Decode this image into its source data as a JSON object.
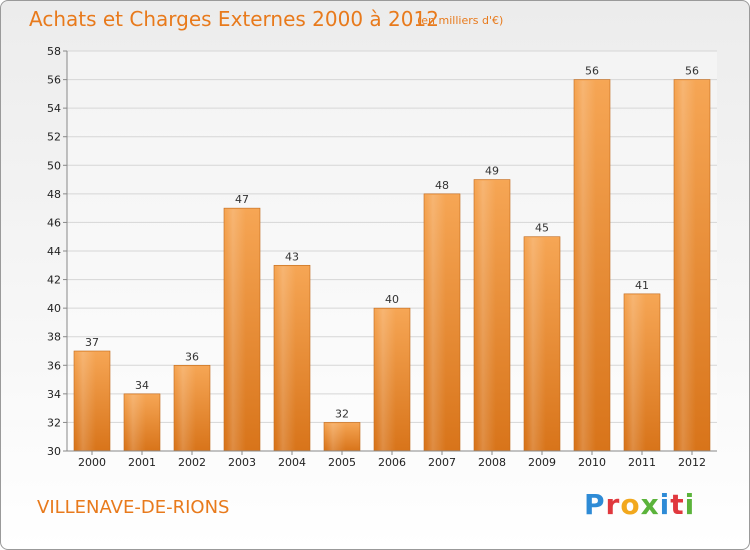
{
  "header": {
    "title": "Achats et Charges Externes 2000 à 2012",
    "unit": "(en milliers d'€)"
  },
  "footer": {
    "town": "VILLENAVE-DE-RIONS",
    "logo_letters": [
      "P",
      "r",
      "o",
      "x",
      "i",
      "t",
      "i"
    ],
    "logo_colors": [
      "#2e8bd6",
      "#e0383e",
      "#f2a81d",
      "#5bb33b",
      "#2e8bd6",
      "#e0383e",
      "#5bb33b"
    ]
  },
  "colors": {
    "accent": "#e87a1c",
    "bar_top": "#f6a655",
    "bar_bottom": "#d8741a",
    "grid": "#d6d6d6"
  },
  "chart_data": {
    "type": "bar",
    "title": "Achats et Charges Externes 2000 à 2012",
    "subtitle": "(en milliers d'€)",
    "categories": [
      "2000",
      "2001",
      "2002",
      "2003",
      "2004",
      "2005",
      "2006",
      "2007",
      "2008",
      "2009",
      "2010",
      "2011",
      "2012"
    ],
    "values": [
      37,
      34,
      36,
      47,
      43,
      32,
      40,
      48,
      49,
      45,
      56,
      41,
      56
    ],
    "ylim": [
      30,
      58
    ],
    "yticks": [
      30,
      32,
      34,
      36,
      38,
      40,
      42,
      44,
      46,
      48,
      50,
      52,
      54,
      56,
      58
    ],
    "grid": true,
    "data_labels": true
  }
}
